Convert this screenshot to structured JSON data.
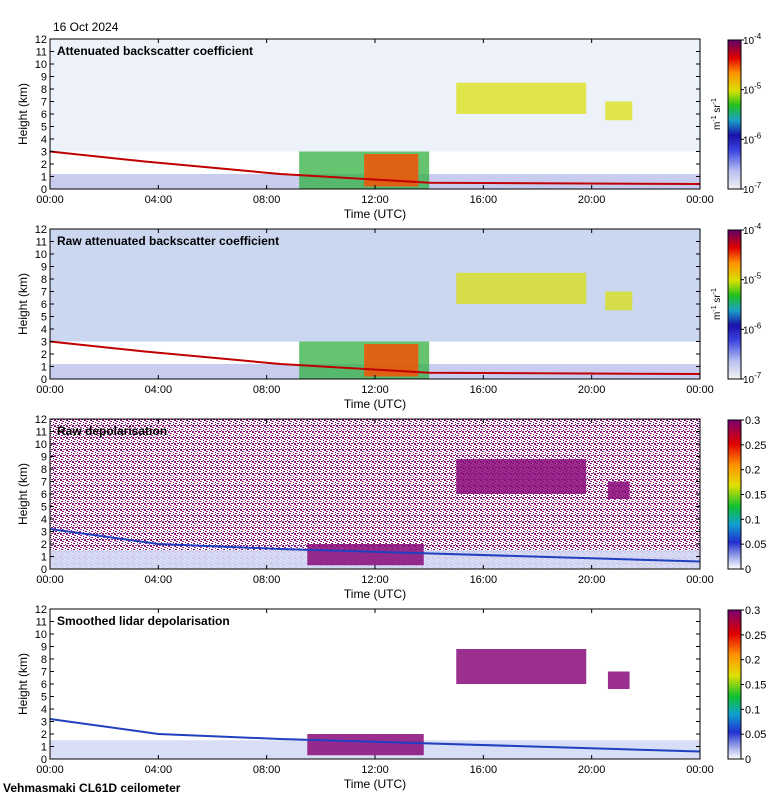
{
  "date": "16 Oct 2024",
  "footer": "Vehmasmaki CL61D ceilometer",
  "chart_data": [
    {
      "type": "heatmap",
      "title": "Attenuated backscatter coefficient",
      "xlabel": "Time (UTC)",
      "ylabel": "Height (km)",
      "xticks": [
        "00:00",
        "04:00",
        "08:00",
        "12:00",
        "16:00",
        "20:00",
        "00:00"
      ],
      "yticks": [
        "0",
        "1",
        "2",
        "3",
        "4",
        "5",
        "6",
        "7",
        "8",
        "9",
        "10",
        "11",
        "12"
      ],
      "xlim_hours": [
        0,
        24
      ],
      "ylim_km": [
        0,
        12
      ],
      "colorbar": {
        "scale": "log",
        "ticks": [
          {
            "base": "10",
            "exp": "-7"
          },
          {
            "base": "10",
            "exp": "-6"
          },
          {
            "base": "10",
            "exp": "-5"
          },
          {
            "base": "10",
            "exp": "-4"
          }
        ],
        "unit_base": "m",
        "unit_base_exp": "-1",
        "unit_sr": " sr",
        "unit_sr_exp": "-1"
      }
    },
    {
      "type": "heatmap",
      "title": "Raw attenuated backscatter coefficient",
      "xlabel": "Time (UTC)",
      "ylabel": "Height (km)",
      "xticks": [
        "00:00",
        "04:00",
        "08:00",
        "12:00",
        "16:00",
        "20:00",
        "00:00"
      ],
      "yticks": [
        "0",
        "1",
        "2",
        "3",
        "4",
        "5",
        "6",
        "7",
        "8",
        "9",
        "10",
        "11",
        "12"
      ],
      "xlim_hours": [
        0,
        24
      ],
      "ylim_km": [
        0,
        12
      ],
      "colorbar": {
        "scale": "log",
        "ticks": [
          {
            "base": "10",
            "exp": "-7"
          },
          {
            "base": "10",
            "exp": "-6"
          },
          {
            "base": "10",
            "exp": "-5"
          },
          {
            "base": "10",
            "exp": "-4"
          }
        ],
        "unit_base": "m",
        "unit_base_exp": "-1",
        "unit_sr": " sr",
        "unit_sr_exp": "-1"
      }
    },
    {
      "type": "heatmap",
      "title": "Raw depolarisation",
      "xlabel": "Time (UTC)",
      "ylabel": "Height (km)",
      "xticks": [
        "00:00",
        "04:00",
        "08:00",
        "12:00",
        "16:00",
        "20:00",
        "00:00"
      ],
      "yticks": [
        "0",
        "1",
        "2",
        "3",
        "4",
        "5",
        "6",
        "7",
        "8",
        "9",
        "10",
        "11",
        "12"
      ],
      "xlim_hours": [
        0,
        24
      ],
      "ylim_km": [
        0,
        12
      ],
      "colorbar": {
        "scale": "linear",
        "range": [
          0,
          0.3
        ],
        "ticks": [
          "0",
          "0.05",
          "0.1",
          "0.15",
          "0.2",
          "0.25",
          "0.3"
        ]
      }
    },
    {
      "type": "heatmap",
      "title": "Smoothed lidar depolarisation",
      "xlabel": "Time (UTC)",
      "ylabel": "Height (km)",
      "xticks": [
        "00:00",
        "04:00",
        "08:00",
        "12:00",
        "16:00",
        "20:00",
        "00:00"
      ],
      "yticks": [
        "0",
        "1",
        "2",
        "3",
        "4",
        "5",
        "6",
        "7",
        "8",
        "9",
        "10",
        "11",
        "12"
      ],
      "xlim_hours": [
        0,
        24
      ],
      "ylim_km": [
        0,
        12
      ],
      "colorbar": {
        "scale": "linear",
        "range": [
          0,
          0.3
        ],
        "ticks": [
          "0",
          "0.05",
          "0.1",
          "0.15",
          "0.2",
          "0.25",
          "0.3"
        ]
      }
    }
  ]
}
